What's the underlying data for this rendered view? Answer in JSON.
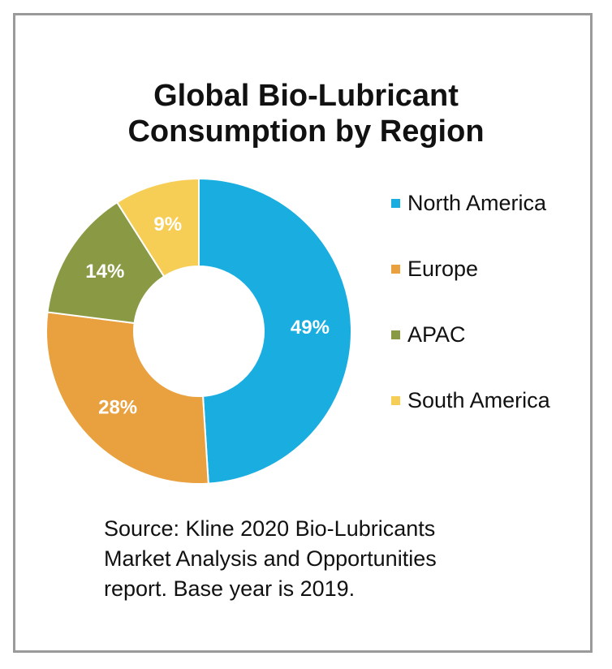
{
  "chart_data": {
    "type": "pie",
    "donut": true,
    "title_lines": [
      "Global Bio-Lubricant",
      "Consumption by Region"
    ],
    "title": "Global Bio-Lubricant Consumption by Region",
    "categories": [
      "North America",
      "Europe",
      "APAC",
      "South America"
    ],
    "values": [
      49,
      28,
      14,
      9
    ],
    "data_labels": [
      "49%",
      "28%",
      "14%",
      "9%"
    ],
    "colors": [
      "#1aaee0",
      "#e9a03f",
      "#8a9a44",
      "#f6cd55"
    ],
    "legend_position": "right"
  },
  "source_lines": [
    "Source: Kline 2020 Bio-Lubricants",
    "Market Analysis and Opportunities",
    "report. Base year is 2019."
  ]
}
